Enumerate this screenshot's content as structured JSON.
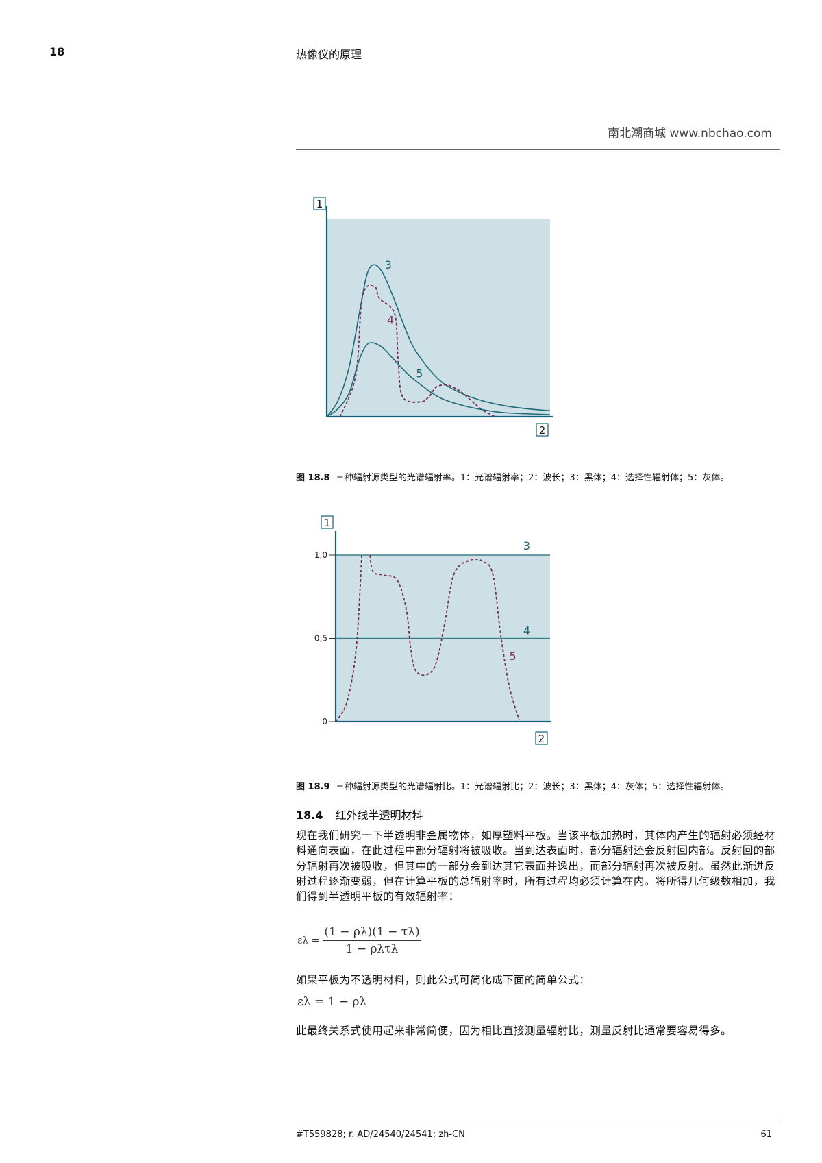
{
  "header": {
    "page_number": "18",
    "chapter_title": "热像仪的原理",
    "site": "南北潮商城 www.nbchao.com"
  },
  "colors": {
    "plot_bg": "#cde0e6",
    "axis": "#14607a",
    "curve": "#1e6a78",
    "selective": "#7a2a5a"
  },
  "chart_data": [
    {
      "type": "line",
      "axis_labels": {
        "y": "1",
        "x": "2"
      },
      "xlim": [
        0,
        100
      ],
      "ylim": [
        0,
        100
      ],
      "series": [
        {
          "name": "3",
          "style": "solid",
          "points": [
            [
              0,
              0
            ],
            [
              5,
              8
            ],
            [
              10,
              25
            ],
            [
              15,
              55
            ],
            [
              18,
              72
            ],
            [
              21,
              77
            ],
            [
              25,
              73
            ],
            [
              30,
              60
            ],
            [
              35,
              45
            ],
            [
              40,
              33
            ],
            [
              50,
              19
            ],
            [
              60,
              12
            ],
            [
              70,
              8
            ],
            [
              80,
              5.5
            ],
            [
              90,
              4
            ],
            [
              100,
              3
            ]
          ]
        },
        {
          "name": "4",
          "style": "dashed",
          "points": [
            [
              6,
              0
            ],
            [
              13,
              21
            ],
            [
              16,
              61
            ],
            [
              21.4,
              66
            ],
            [
              23.5,
              60
            ],
            [
              28.6,
              55.5
            ],
            [
              31,
              49
            ],
            [
              32,
              28
            ],
            [
              34,
              10
            ],
            [
              42,
              7.5
            ],
            [
              46,
              10.4
            ],
            [
              49,
              15
            ],
            [
              54,
              16
            ],
            [
              60,
              12.7
            ],
            [
              69,
              4
            ],
            [
              75.5,
              0
            ]
          ]
        },
        {
          "name": "5",
          "style": "solid",
          "points": [
            [
              0,
              0
            ],
            [
              5,
              4
            ],
            [
              10,
              12
            ],
            [
              14,
              27
            ],
            [
              17,
              35
            ],
            [
              20,
              37.5
            ],
            [
              25,
              35
            ],
            [
              30,
              29
            ],
            [
              35,
              23
            ],
            [
              40,
              18
            ],
            [
              50,
              10
            ],
            [
              60,
              6
            ],
            [
              70,
              3.5
            ],
            [
              80,
              2
            ],
            [
              100,
              1
            ]
          ]
        }
      ]
    },
    {
      "type": "line",
      "axis_labels": {
        "y": "1",
        "x": "2"
      },
      "yticks": [
        "0",
        "0,5",
        "1,0"
      ],
      "ytick_values": [
        0,
        0.5,
        1.0
      ],
      "xlim": [
        0,
        100
      ],
      "ylim": [
        0,
        1.15
      ],
      "series": [
        {
          "name": "3",
          "style": "solid",
          "points": [
            [
              0,
              1.0
            ],
            [
              100,
              1.0
            ]
          ]
        },
        {
          "name": "4",
          "style": "solid",
          "points": [
            [
              0,
              0.5
            ],
            [
              100,
              0.5
            ]
          ]
        },
        {
          "name": "5",
          "style": "dashed",
          "segments": [
            [
              [
                0,
                0
              ],
              [
                5.3,
                0.12
              ],
              [
                9.6,
                0.44
              ],
              [
                12.2,
                1.0
              ]
            ],
            [
              [
                16,
                1.0
              ],
              [
                17.5,
                0.9
              ],
              [
                22.3,
                0.88
              ],
              [
                28.7,
                0.85
              ],
              [
                33,
                0.67
              ],
              [
                35,
                0.44
              ],
              [
                37.2,
                0.31
              ],
              [
                42,
                0.28
              ],
              [
                46.8,
                0.35
              ],
              [
                51,
                0.6
              ],
              [
                55.3,
                0.89
              ],
              [
                62.8,
                0.97
              ],
              [
                69,
                0.96
              ],
              [
                73.4,
                0.88
              ],
              [
                77,
                0.52
              ],
              [
                81,
                0.21
              ],
              [
                85.6,
                0.01
              ]
            ]
          ]
        }
      ]
    }
  ],
  "captions": [
    {
      "label": "图 18.8",
      "text": "三种辐射源类型的光谱辐射率。1：光谱辐射率；2：波长；3：黑体；4：选择性辐射体；5：灰体。"
    },
    {
      "label": "图 18.9",
      "text": "三种辐射源类型的光谱辐射比。1：光谱辐射比；2：波长；3：黑体；4：灰体；5：选择性辐射体。"
    }
  ],
  "section": {
    "number": "18.4",
    "title": "红外线半透明材料"
  },
  "paragraphs": [
    "现在我们研究一下半透明非金属物体，如厚塑料平板。当该平板加热时，其体内产生的辐射必须经材料通向表面，在此过程中部分辐射将被吸收。当到达表面时，部分辐射还会反射回内部。反射回的部分辐射再次被吸收，但其中的一部分会到达其它表面并逸出，而部分辐射再次被反射。虽然此渐进反射过程逐渐变弱，但在计算平板的总辐射率时，所有过程均必须计算在内。将所得几何级数相加，我们得到半透明平板的有效辐射率：",
    "如果平板为不透明材料，则此公式可简化成下面的简单公式：",
    "此最终关系式使用起来非常简便，因为相比直接测量辐射比，测量反射比通常要容易得多。"
  ],
  "formulas": {
    "f1_lhs": "ελ =",
    "f1_num": "(1 − ρλ)(1 − τλ)",
    "f1_den": "1 − ρλτλ",
    "f2": "ελ = 1 − ρλ"
  },
  "footer": {
    "doc_ref": "#T559828; r. AD/24540/24541; zh-CN",
    "page": "61"
  }
}
